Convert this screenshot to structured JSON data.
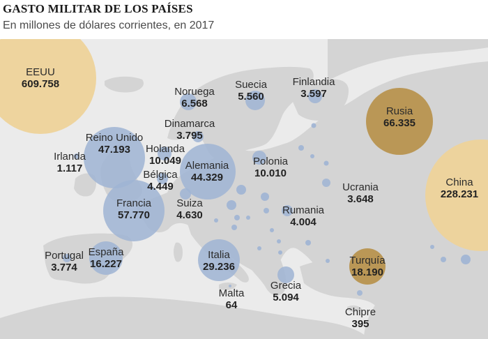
{
  "title": "GASTO MILITAR DE LOS PAÍSES",
  "subtitle": "En millones de dólares corrientes, en 2017",
  "colors": {
    "sea": "#ebebeb",
    "land": "#d4d4d4",
    "bubble_europe": "#9fb4d4",
    "bubble_highlight": "#b8934f",
    "bubble_large": "#eed39a",
    "text": "#222222"
  },
  "countries": [
    {
      "key": "eeuu",
      "name": "EEUU",
      "value": "609.758"
    },
    {
      "key": "noruega",
      "name": "Noruega",
      "value": "6.568"
    },
    {
      "key": "suecia",
      "name": "Suecia",
      "value": "5.560"
    },
    {
      "key": "finlandia",
      "name": "Finlandia",
      "value": "3.597"
    },
    {
      "key": "rusia",
      "name": "Rusia",
      "value": "66.335"
    },
    {
      "key": "dinamarca",
      "name": "Dinamarca",
      "value": "3.795"
    },
    {
      "key": "reino_unido",
      "name": "Reino Unido",
      "value": "47.193"
    },
    {
      "key": "holanda",
      "name": "Holanda",
      "value": "10.049"
    },
    {
      "key": "irlanda",
      "name": "Irlanda",
      "value": "1.117"
    },
    {
      "key": "alemania",
      "name": "Alemania",
      "value": "44.329"
    },
    {
      "key": "polonia",
      "name": "Polonia",
      "value": "10.010"
    },
    {
      "key": "belgica",
      "name": "Bélgica",
      "value": "4.449"
    },
    {
      "key": "china",
      "name": "China",
      "value": "228.231"
    },
    {
      "key": "ucrania",
      "name": "Ucrania",
      "value": "3.648"
    },
    {
      "key": "francia",
      "name": "Francia",
      "value": "57.770"
    },
    {
      "key": "suiza",
      "name": "Suiza",
      "value": "4.630"
    },
    {
      "key": "rumania",
      "name": "Rumania",
      "value": "4.004"
    },
    {
      "key": "portugal",
      "name": "Portugal",
      "value": "3.774"
    },
    {
      "key": "espana",
      "name": "España",
      "value": "16.227"
    },
    {
      "key": "italia",
      "name": "Italia",
      "value": "29.236"
    },
    {
      "key": "turquia",
      "name": "Turquía",
      "value": "18.190"
    },
    {
      "key": "malta",
      "name": "Malta",
      "value": "64"
    },
    {
      "key": "grecia",
      "name": "Grecia",
      "value": "5.094"
    },
    {
      "key": "chipre",
      "name": "Chipre",
      "value": "395"
    }
  ]
}
